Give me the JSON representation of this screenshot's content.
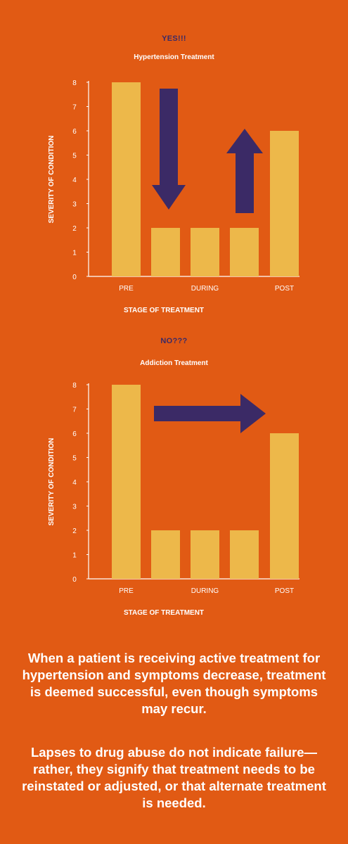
{
  "chart_data": [
    {
      "type": "bar",
      "verdict": "YES!!!",
      "title": "Hypertension Treatment",
      "xlabel": "STAGE OF TREATMENT",
      "ylabel": "SEVERITY OF CONDITION",
      "ylim": [
        0,
        8
      ],
      "yticks": [
        0,
        1,
        2,
        3,
        4,
        5,
        6,
        7,
        8
      ],
      "categories": [
        "PRE",
        "",
        "DURING",
        "",
        "POST"
      ],
      "values": [
        8,
        2,
        2,
        2,
        6
      ],
      "bar_color": "#edb84a",
      "annotations": [
        {
          "type": "arrow",
          "direction": "down",
          "color": "#3b2a66"
        },
        {
          "type": "arrow",
          "direction": "up",
          "color": "#3b2a66"
        }
      ]
    },
    {
      "type": "bar",
      "verdict": "NO???",
      "title": "Addiction Treatment",
      "xlabel": "STAGE OF TREATMENT",
      "ylabel": "SEVERITY OF CONDITION",
      "ylim": [
        0,
        8
      ],
      "yticks": [
        0,
        1,
        2,
        3,
        4,
        5,
        6,
        7,
        8
      ],
      "categories": [
        "PRE",
        "",
        "DURING",
        "",
        "POST"
      ],
      "values": [
        8,
        2,
        2,
        2,
        6
      ],
      "bar_color": "#edb84a",
      "annotations": [
        {
          "type": "arrow",
          "direction": "right",
          "color": "#3b2a66"
        }
      ]
    }
  ],
  "captions": {
    "paragraph1": "When a patient is receiving active treatment for hypertension and symptoms decrease, treatment is deemed successful, even though symptoms may recur.",
    "paragraph2": "Lapses to drug abuse do not indicate failure—rather, they signify that treatment needs to be reinstated or adjusted, or that alternate treatment is needed."
  },
  "colors": {
    "background": "#e15a14",
    "bar": "#edb84a",
    "arrow": "#3b2a66",
    "text": "#ffffff"
  }
}
